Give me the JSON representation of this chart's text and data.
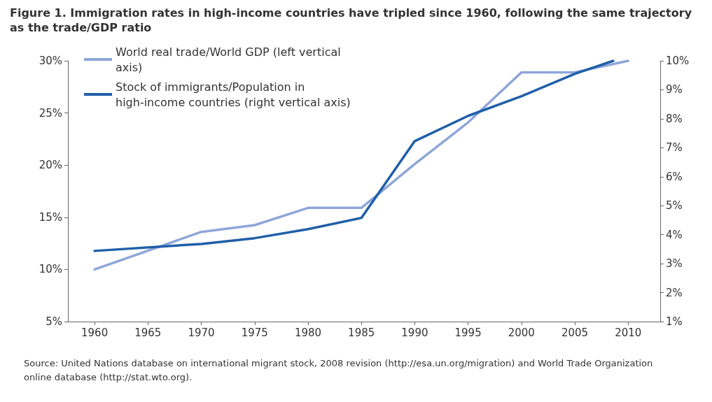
{
  "chart_data": {
    "type": "line",
    "title": "Figure 1. Immigration rates in high-income countries have tripled since 1960, following the same trajectory as the trade/GDP ratio",
    "series": [
      {
        "name": "World real trade/World GDP (left vertical axis)",
        "color": "#8ea6d8",
        "x": [
          1960,
          1970,
          1975,
          1980,
          1985,
          1990,
          1995,
          2000,
          2005,
          2010
        ],
        "values": [
          10,
          13.6,
          14.25,
          15.9,
          15.9,
          20.1,
          24.1,
          28.9,
          28.9,
          30
        ]
      },
      {
        "name": "Stock of immigrants/Population in high-income countries (right vertical axis)",
        "color": "#1f5fa8",
        "axis": "y2",
        "x": [
          1960,
          1970,
          1975,
          1980,
          1985,
          1990,
          1995,
          2000,
          2005,
          2008.6
        ],
        "values": [
          3.44,
          3.68,
          3.88,
          4.19,
          4.58,
          7.23,
          8.1,
          8.78,
          9.55,
          10
        ]
      }
    ],
    "xlim": [
      1957.5,
      2013
    ],
    "xticks": [
      1960,
      1965,
      1970,
      1975,
      1980,
      1985,
      1990,
      1995,
      2000,
      2005,
      2010
    ],
    "ylim": [
      5,
      30
    ],
    "yticks": [
      {
        "value": 5,
        "label": "5%"
      },
      {
        "value": 10,
        "label": "10%"
      },
      {
        "value": 15,
        "label": "15%"
      },
      {
        "value": 20,
        "label": "20%"
      },
      {
        "value": 25,
        "label": "25%"
      },
      {
        "value": 30,
        "label": "30%"
      }
    ],
    "y2lim": [
      1,
      10
    ],
    "y2ticks": [
      {
        "value": 1,
        "label": "1%"
      },
      {
        "value": 2,
        "label": "2%"
      },
      {
        "value": 3,
        "label": "3%"
      },
      {
        "value": 4,
        "label": "4%"
      },
      {
        "value": 5,
        "label": "5%"
      },
      {
        "value": 6,
        "label": "6%"
      },
      {
        "value": 7,
        "label": "7%"
      },
      {
        "value": 8,
        "label": "8%"
      },
      {
        "value": 9,
        "label": "9%"
      },
      {
        "value": 10,
        "label": "10%"
      }
    ],
    "annotations": [
      "Source: United Nations database on international migrant stock, 2008 revision (http://esa.un.org/migration) and World Trade Organization online database (http://stat.wto.org)."
    ],
    "grid": false,
    "legend": "top left",
    "marker": "none",
    "line_style": "solid"
  }
}
